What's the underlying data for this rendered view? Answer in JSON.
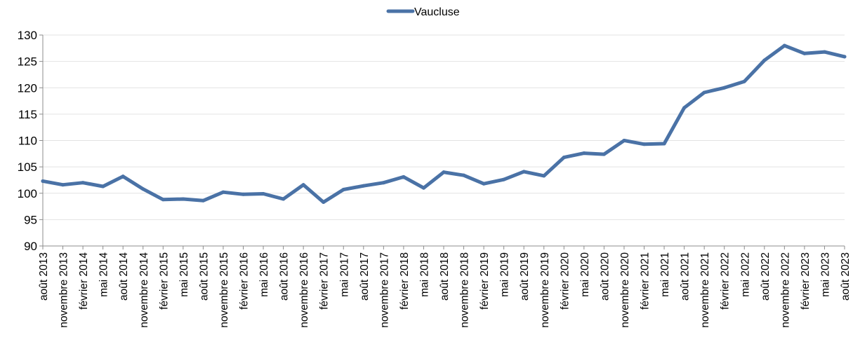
{
  "chart_data": {
    "type": "line",
    "title": "",
    "xlabel": "",
    "ylabel": "",
    "ylim": [
      90,
      130
    ],
    "yticks": [
      90,
      95,
      100,
      105,
      110,
      115,
      120,
      125,
      130
    ],
    "grid": true,
    "legend_position": "top-center",
    "categories": [
      "août 2013",
      "novembre 2013",
      "février 2014",
      "mai 2014",
      "août 2014",
      "novembre 2014",
      "février 2015",
      "mai 2015",
      "août 2015",
      "novembre 2015",
      "février 2016",
      "mai 2016",
      "août 2016",
      "novembre 2016",
      "février 2017",
      "mai 2017",
      "août 2017",
      "novembre 2017",
      "février 2018",
      "mai 2018",
      "août 2018",
      "novembre 2018",
      "février 2019",
      "mai 2019",
      "août 2019",
      "novembre 2019",
      "février 2020",
      "mai 2020",
      "août 2020",
      "novembre 2020",
      "février 2021",
      "mai 2021",
      "août 2021",
      "novembre 2021",
      "février 2022",
      "mai 2022",
      "août 2022",
      "novembre 2022",
      "février 2023",
      "mai 2023",
      "août 2023"
    ],
    "series": [
      {
        "name": "Vaucluse",
        "color": "#4a72a6",
        "values": [
          102.3,
          101.6,
          102.0,
          101.3,
          103.2,
          100.8,
          98.8,
          98.9,
          98.6,
          100.2,
          99.8,
          99.9,
          98.9,
          101.6,
          98.3,
          100.7,
          101.4,
          102.0,
          103.1,
          101.0,
          104.0,
          103.4,
          101.8,
          102.6,
          104.1,
          103.3,
          106.8,
          107.6,
          107.4,
          110.0,
          109.3,
          109.4,
          116.2,
          119.1,
          120.0,
          121.2,
          125.2,
          128.0,
          126.5,
          126.8,
          125.9
        ]
      }
    ]
  }
}
